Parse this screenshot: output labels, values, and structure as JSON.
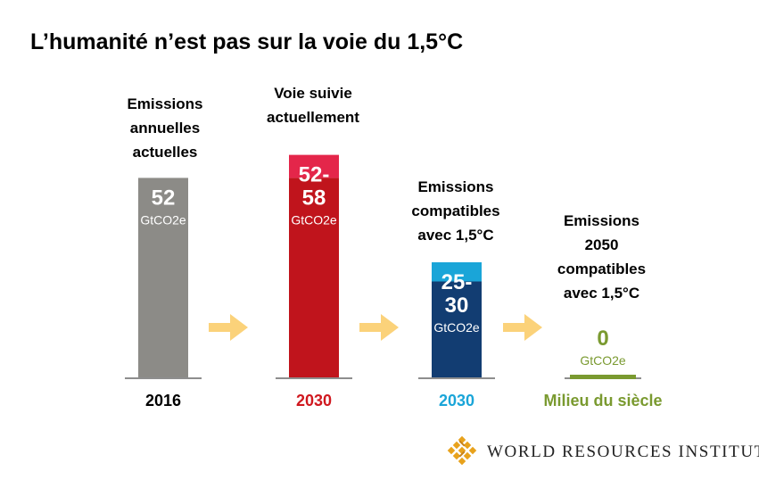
{
  "title": "L’humanité n’est pas sur la voie du 1,5°C",
  "colors": {
    "gray": "#8c8b87",
    "red": "#c0141c",
    "red_light": "#e4264a",
    "navy": "#123d72",
    "blue_light": "#1aa5d8",
    "green": "#7a9a30",
    "arrow": "#fbd27a",
    "baseline": "#8e8e8e"
  },
  "chart_data": {
    "type": "bar",
    "unit": "GtCO2e",
    "ylim": [
      0,
      65
    ],
    "bars": [
      {
        "caption": [
          "Emissions",
          "annuelles",
          "actuelles"
        ],
        "caption_color": "#8c8b87",
        "value_label": [
          "52"
        ],
        "unit_label": "GtCO2e",
        "low": 52,
        "high": 52,
        "year": "2016",
        "year_color": "#000000"
      },
      {
        "caption": [
          "Voie suivie",
          "actuellement"
        ],
        "caption_color": "#d0181f",
        "value_label": [
          "52-",
          "58"
        ],
        "unit_label": "GtCO2e",
        "low": 52,
        "high": 58,
        "year": "2030",
        "year_color": "#d0181f"
      },
      {
        "caption": [
          "Emissions",
          "compatibles",
          "avec 1,5°C"
        ],
        "caption_color": "#1aa5d8",
        "value_label": [
          "25-",
          "30"
        ],
        "unit_label": "GtCO2e",
        "low": 25,
        "high": 30,
        "year": "2030",
        "year_color": "#1aa5d8"
      },
      {
        "caption": [
          "Emissions",
          "2050",
          "compatibles",
          "avec 1,5°C"
        ],
        "caption_color": "#7a9a30",
        "value_label": [
          "0"
        ],
        "unit_label": "GtCO2e",
        "low": 0,
        "high": 0,
        "year": "Milieu du siècle",
        "year_color": "#7a9a30"
      }
    ]
  },
  "logo": {
    "text": "WORLD RESOURCES INSTITUTE"
  }
}
